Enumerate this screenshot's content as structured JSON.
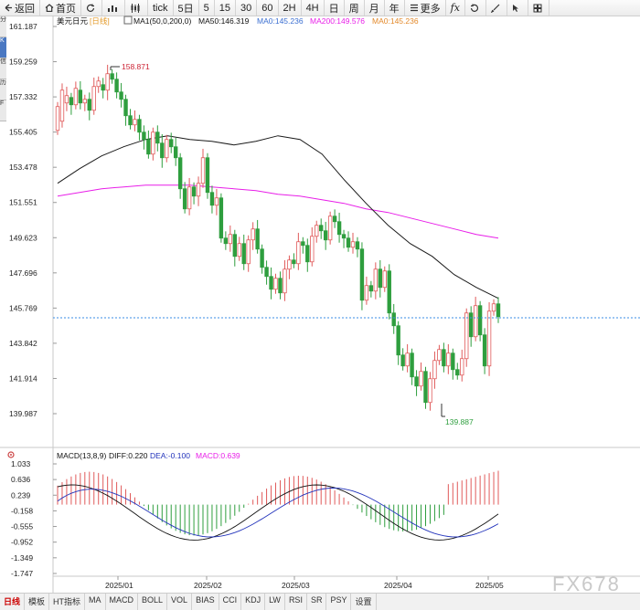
{
  "toolbar": {
    "back": "返回",
    "home": "首页",
    "tick": "tick",
    "periods": [
      "5日",
      "5",
      "15",
      "30",
      "60",
      "2H",
      "4H",
      "日",
      "周",
      "月",
      "年"
    ],
    "more": "更多",
    "fx": "fx"
  },
  "side_tabs": [
    "分",
    "K",
    "信",
    "历",
    "F"
  ],
  "main_legend": {
    "title": "美元日元",
    "period": "[日线]",
    "ma1": "MA1(50,0,200,0)",
    "ma50": "MA50:146.319",
    "ma0a": "MA0:145.236",
    "ma200": "MA200:149.576",
    "ma0b": "MA0:145.236"
  },
  "macd_legend": {
    "title": "MACD(13,8,9)",
    "diff": "DIFF:0.220",
    "dea": "DEA:-0.100",
    "macd": "MACD:0.639"
  },
  "price_ticks": [
    "161.187",
    "159.259",
    "157.332",
    "155.405",
    "153.478",
    "151.551",
    "149.623",
    "147.696",
    "145.769",
    "143.842",
    "141.914",
    "139.987"
  ],
  "macd_ticks": [
    "1.033",
    "0.636",
    "0.239",
    "-0.158",
    "-0.555",
    "-0.952",
    "-1.349",
    "-1.747"
  ],
  "x_ticks": [
    "2025/01",
    "2025/02",
    "2025/03",
    "2025/04",
    "2025/05"
  ],
  "annotations": {
    "high": "158.871",
    "low": "139.887"
  },
  "bottom_tabs": [
    "日线",
    "模板",
    "HT指标",
    "MA",
    "MACD",
    "BOLL",
    "VOL",
    "BIAS",
    "CCI",
    "KDJ",
    "LW",
    "RSI",
    "SR",
    "PSY",
    "设置"
  ],
  "watermark": "FX678",
  "colors": {
    "up": "#e05a5a",
    "down": "#2e9e3e",
    "ma50": "#1a1a1a",
    "ma200": "#e81ee8",
    "current": "#3a8ee6",
    "diff": "#111111",
    "dea": "#2233bb"
  },
  "chart_data": {
    "type": "candlestick",
    "title": "美元日元",
    "ylim": [
      139.0,
      162.0
    ],
    "current_price": 145.236,
    "high": 158.871,
    "low": 139.887,
    "months": [
      "2025/01",
      "2025/02",
      "2025/03",
      "2025/04",
      "2025/05"
    ],
    "series": [
      {
        "name": "MA50",
        "values": [
          152.6,
          153.4,
          154.1,
          154.6,
          155.0,
          155.2,
          155.0,
          154.9,
          154.7,
          154.9,
          155.2,
          155.0,
          154.2,
          152.8,
          151.5,
          150.3,
          149.3,
          148.6,
          147.6,
          146.9,
          146.3
        ]
      },
      {
        "name": "MA200",
        "values": [
          151.9,
          152.1,
          152.3,
          152.4,
          152.5,
          152.5,
          152.5,
          152.4,
          152.3,
          152.2,
          152.0,
          151.9,
          151.7,
          151.5,
          151.2,
          151.0,
          150.7,
          150.4,
          150.1,
          149.8,
          149.6
        ]
      }
    ],
    "candles": [
      [
        155.5,
        156.8
      ],
      [
        156.0,
        157.7
      ],
      [
        157.0,
        157.4
      ],
      [
        157.3,
        156.9
      ],
      [
        156.9,
        157.8
      ],
      [
        157.7,
        157.0
      ],
      [
        157.0,
        157.2
      ],
      [
        157.2,
        156.6
      ],
      [
        156.6,
        157.9
      ],
      [
        157.9,
        158.2
      ],
      [
        158.0,
        157.7
      ],
      [
        157.7,
        158.6
      ],
      [
        158.6,
        158.3
      ],
      [
        158.3,
        157.6
      ],
      [
        157.6,
        157.2
      ],
      [
        157.2,
        156.3
      ],
      [
        156.3,
        155.8
      ],
      [
        155.8,
        156.1
      ],
      [
        156.1,
        155.4
      ],
      [
        155.4,
        155.0
      ],
      [
        155.0,
        154.2
      ],
      [
        154.2,
        155.4
      ],
      [
        155.4,
        154.8
      ],
      [
        154.8,
        154.0
      ],
      [
        154.0,
        155.0
      ],
      [
        155.0,
        154.6
      ],
      [
        154.6,
        154.0
      ],
      [
        154.0,
        152.3
      ],
      [
        152.3,
        151.2
      ],
      [
        151.2,
        152.4
      ],
      [
        152.4,
        151.9
      ],
      [
        151.9,
        152.6
      ],
      [
        152.6,
        154.0
      ],
      [
        154.0,
        152.1
      ],
      [
        152.1,
        151.4
      ],
      [
        151.4,
        151.8
      ],
      [
        151.8,
        149.6
      ],
      [
        149.6,
        149.3
      ],
      [
        149.3,
        149.8
      ],
      [
        149.8,
        148.6
      ],
      [
        148.6,
        149.3
      ],
      [
        149.3,
        148.2
      ],
      [
        148.2,
        149.5
      ],
      [
        149.5,
        150.1
      ],
      [
        150.1,
        149.0
      ],
      [
        149.0,
        148.0
      ],
      [
        148.0,
        147.5
      ],
      [
        147.5,
        146.8
      ],
      [
        146.8,
        147.4
      ],
      [
        147.4,
        146.6
      ],
      [
        146.6,
        147.9
      ],
      [
        147.9,
        148.4
      ],
      [
        148.4,
        148.2
      ],
      [
        148.2,
        149.4
      ],
      [
        149.4,
        149.2
      ],
      [
        149.2,
        148.3
      ],
      [
        148.3,
        149.7
      ],
      [
        149.7,
        150.3
      ],
      [
        150.3,
        150.0
      ],
      [
        150.0,
        149.5
      ],
      [
        149.5,
        150.8
      ],
      [
        150.8,
        150.5
      ],
      [
        150.5,
        149.8
      ],
      [
        149.8,
        149.6
      ],
      [
        149.6,
        149.1
      ],
      [
        149.1,
        149.4
      ],
      [
        149.4,
        149.0
      ],
      [
        149.0,
        146.2
      ],
      [
        146.2,
        147.0
      ],
      [
        147.0,
        146.7
      ],
      [
        146.7,
        147.9
      ],
      [
        147.9,
        146.9
      ],
      [
        146.9,
        147.8
      ],
      [
        147.8,
        145.5
      ],
      [
        145.5,
        144.8
      ],
      [
        144.8,
        143.2
      ],
      [
        143.2,
        142.6
      ],
      [
        142.6,
        143.3
      ],
      [
        143.3,
        142.0
      ],
      [
        142.0,
        141.5
      ],
      [
        141.5,
        142.3
      ],
      [
        142.3,
        140.6
      ],
      [
        140.6,
        141.9
      ],
      [
        141.9,
        142.9
      ],
      [
        142.9,
        143.5
      ],
      [
        143.5,
        142.6
      ],
      [
        142.6,
        143.3
      ],
      [
        143.3,
        142.4
      ],
      [
        142.4,
        142.1
      ],
      [
        142.1,
        143.0
      ],
      [
        143.0,
        145.5
      ],
      [
        145.5,
        144.2
      ],
      [
        144.2,
        145.9
      ],
      [
        145.9,
        144.3
      ],
      [
        144.3,
        142.6
      ],
      [
        142.6,
        145.6
      ],
      [
        145.6,
        146.0
      ],
      [
        146.0,
        145.3
      ]
    ]
  }
}
